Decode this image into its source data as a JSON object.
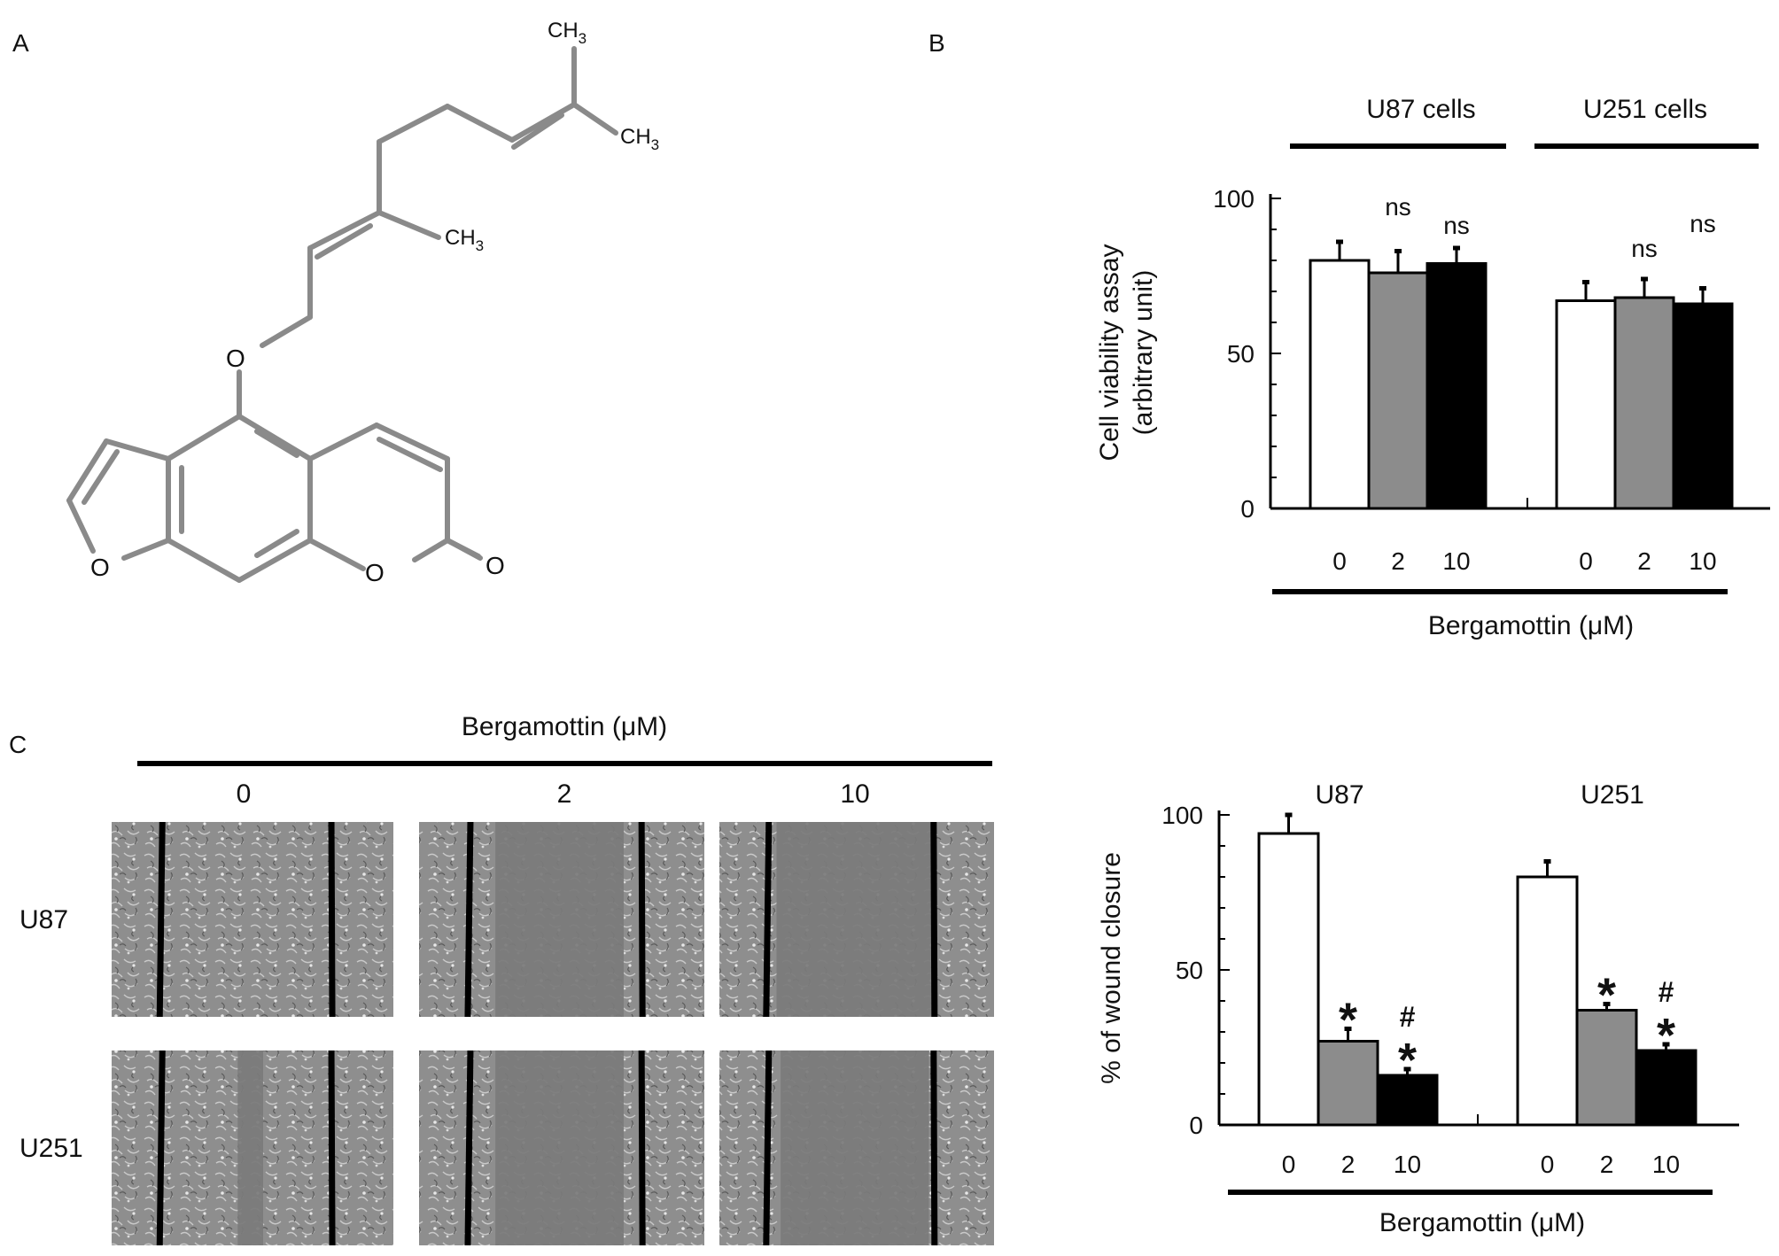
{
  "panels": {
    "a": {
      "letter": "A"
    },
    "b": {
      "letter": "B"
    },
    "c": {
      "letter": "C"
    }
  },
  "molecule": {
    "atoms": {
      "o_ether": "O",
      "o_furan": "O",
      "o_lactone": "O",
      "o_carbonyl": "O"
    },
    "methyl_labels": [
      "CH3",
      "CH3",
      "CH3"
    ]
  },
  "chart_data": [
    {
      "type": "bar",
      "panel": "B",
      "ylabel_lines": [
        "Cell viability assay",
        "(arbitrary unit)"
      ],
      "xlabel": "Bergamottin (μM)",
      "ylim": [
        0,
        100
      ],
      "yticks": [
        0,
        50,
        100
      ],
      "groups": [
        {
          "name": "U87 cells",
          "categories": [
            "0",
            "2",
            "10"
          ],
          "values": [
            80,
            76,
            79
          ],
          "errors": [
            6,
            7,
            5
          ],
          "annotations": [
            "",
            "ns",
            "ns"
          ]
        },
        {
          "name": "U251 cells",
          "categories": [
            "0",
            "2",
            "10"
          ],
          "values": [
            67,
            68,
            66
          ],
          "errors": [
            6,
            6,
            5
          ],
          "annotations": [
            "",
            "ns",
            "ns"
          ]
        }
      ],
      "bar_colors": [
        "#ffffff",
        "#8c8c8c",
        "#000000"
      ]
    },
    {
      "type": "bar",
      "panel": "C",
      "ylabel": "% of wound closure",
      "xlabel": "Bergamottin (μM)",
      "ylim": [
        0,
        100
      ],
      "yticks": [
        0,
        50,
        100
      ],
      "groups": [
        {
          "name": "U87",
          "categories": [
            "0",
            "2",
            "10"
          ],
          "values": [
            94,
            27,
            16
          ],
          "errors": [
            6,
            4,
            2
          ],
          "annotations": [
            "",
            "*",
            "#*"
          ]
        },
        {
          "name": "U251",
          "categories": [
            "0",
            "2",
            "10"
          ],
          "values": [
            80,
            37,
            24
          ],
          "errors": [
            5,
            2,
            2
          ],
          "annotations": [
            "",
            "*",
            "#*"
          ]
        }
      ],
      "bar_colors": [
        "#ffffff",
        "#8c8c8c",
        "#000000"
      ]
    }
  ],
  "micrographs": {
    "header": "Bergamottin (μM)",
    "columns": [
      "0",
      "2",
      "10"
    ],
    "rows": [
      "U87",
      "U251"
    ],
    "wound_fill": [
      [
        0.0,
        0.75,
        0.95
      ],
      [
        0.15,
        0.75,
        0.9
      ]
    ]
  }
}
